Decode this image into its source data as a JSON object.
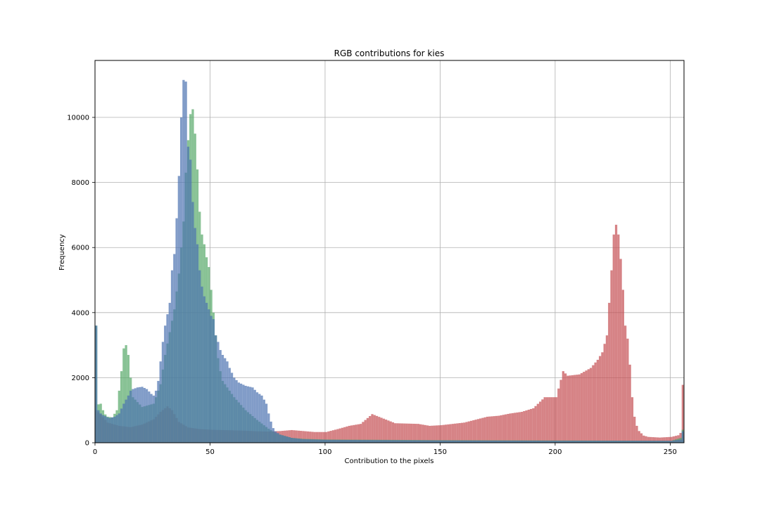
{
  "chart_data": {
    "type": "bar",
    "title": "RGB contributions for kies",
    "xlabel": "Contribution to the pixels",
    "ylabel": "Frequency",
    "xlim": [
      0,
      256
    ],
    "ylim": [
      0,
      11750
    ],
    "xticks": [
      0,
      50,
      100,
      150,
      200,
      250
    ],
    "yticks": [
      0,
      2000,
      4000,
      6000,
      8000,
      10000
    ],
    "grid": true,
    "overlay_alpha": 0.7,
    "bin_width": 1,
    "series": [
      {
        "color": "#c44e52",
        "points": [
          [
            0,
            1000
          ],
          [
            2,
            870
          ],
          [
            5,
            620
          ],
          [
            10,
            520
          ],
          [
            15,
            480
          ],
          [
            20,
            560
          ],
          [
            25,
            720
          ],
          [
            28,
            950
          ],
          [
            31,
            1120
          ],
          [
            33,
            1000
          ],
          [
            36,
            640
          ],
          [
            40,
            470
          ],
          [
            45,
            420
          ],
          [
            50,
            400
          ],
          [
            55,
            390
          ],
          [
            60,
            380
          ],
          [
            65,
            370
          ],
          [
            70,
            350
          ],
          [
            75,
            345
          ],
          [
            80,
            360
          ],
          [
            85,
            390
          ],
          [
            90,
            360
          ],
          [
            95,
            330
          ],
          [
            100,
            330
          ],
          [
            105,
            420
          ],
          [
            110,
            520
          ],
          [
            115,
            580
          ],
          [
            120,
            880
          ],
          [
            125,
            740
          ],
          [
            130,
            600
          ],
          [
            135,
            590
          ],
          [
            140,
            580
          ],
          [
            145,
            520
          ],
          [
            150,
            540
          ],
          [
            155,
            580
          ],
          [
            160,
            620
          ],
          [
            165,
            710
          ],
          [
            170,
            800
          ],
          [
            175,
            830
          ],
          [
            180,
            900
          ],
          [
            185,
            950
          ],
          [
            190,
            1060
          ],
          [
            195,
            1400
          ],
          [
            200,
            1400
          ],
          [
            203,
            2200
          ],
          [
            205,
            2060
          ],
          [
            210,
            2100
          ],
          [
            215,
            2300
          ],
          [
            218,
            2550
          ],
          [
            220,
            2780
          ],
          [
            222,
            3300
          ],
          [
            224,
            5300
          ],
          [
            225,
            6400
          ],
          [
            226,
            6700
          ],
          [
            227,
            6400
          ],
          [
            228,
            5650
          ],
          [
            229,
            4700
          ],
          [
            230,
            3600
          ],
          [
            231,
            3200
          ],
          [
            232,
            2400
          ],
          [
            233,
            1400
          ],
          [
            234,
            800
          ],
          [
            235,
            520
          ],
          [
            236,
            360
          ],
          [
            238,
            220
          ],
          [
            240,
            180
          ],
          [
            245,
            160
          ],
          [
            250,
            180
          ],
          [
            253,
            230
          ],
          [
            254,
            300
          ],
          [
            255,
            1780
          ]
        ]
      },
      {
        "color": "#55a868",
        "points": [
          [
            0,
            3600
          ],
          [
            1,
            1180
          ],
          [
            2,
            1200
          ],
          [
            3,
            1000
          ],
          [
            4,
            870
          ],
          [
            5,
            800
          ],
          [
            7,
            780
          ],
          [
            9,
            1000
          ],
          [
            10,
            1600
          ],
          [
            11,
            2200
          ],
          [
            12,
            2900
          ],
          [
            13,
            3000
          ],
          [
            14,
            2700
          ],
          [
            15,
            2000
          ],
          [
            16,
            1400
          ],
          [
            20,
            1100
          ],
          [
            25,
            1200
          ],
          [
            28,
            1800
          ],
          [
            30,
            2700
          ],
          [
            32,
            3400
          ],
          [
            34,
            4100
          ],
          [
            36,
            5200
          ],
          [
            38,
            6800
          ],
          [
            39,
            8300
          ],
          [
            40,
            9300
          ],
          [
            41,
            10100
          ],
          [
            42,
            10250
          ],
          [
            43,
            9500
          ],
          [
            44,
            8400
          ],
          [
            45,
            7100
          ],
          [
            46,
            6400
          ],
          [
            47,
            6100
          ],
          [
            48,
            5700
          ],
          [
            49,
            5400
          ],
          [
            50,
            4700
          ],
          [
            51,
            4000
          ],
          [
            52,
            3300
          ],
          [
            53,
            2600
          ],
          [
            54,
            2200
          ],
          [
            55,
            1900
          ],
          [
            60,
            1400
          ],
          [
            65,
            1000
          ],
          [
            70,
            700
          ],
          [
            75,
            430
          ],
          [
            78,
            300
          ],
          [
            80,
            250
          ],
          [
            85,
            150
          ],
          [
            90,
            120
          ],
          [
            100,
            100
          ],
          [
            150,
            80
          ],
          [
            200,
            70
          ],
          [
            250,
            60
          ],
          [
            254,
            150
          ],
          [
            255,
            400
          ]
        ]
      },
      {
        "color": "#4c72b0",
        "points": [
          [
            0,
            3600
          ],
          [
            1,
            1000
          ],
          [
            2,
            900
          ],
          [
            3,
            850
          ],
          [
            4,
            820
          ],
          [
            5,
            780
          ],
          [
            6,
            760
          ],
          [
            8,
            800
          ],
          [
            10,
            900
          ],
          [
            12,
            1200
          ],
          [
            14,
            1450
          ],
          [
            15,
            1600
          ],
          [
            16,
            1650
          ],
          [
            18,
            1700
          ],
          [
            20,
            1720
          ],
          [
            22,
            1650
          ],
          [
            24,
            1500
          ],
          [
            25,
            1450
          ],
          [
            26,
            1600
          ],
          [
            27,
            1900
          ],
          [
            28,
            2500
          ],
          [
            29,
            3100
          ],
          [
            30,
            3600
          ],
          [
            31,
            3950
          ],
          [
            32,
            4300
          ],
          [
            33,
            5300
          ],
          [
            34,
            5800
          ],
          [
            35,
            6900
          ],
          [
            36,
            8200
          ],
          [
            37,
            10000
          ],
          [
            38,
            11150
          ],
          [
            39,
            11100
          ],
          [
            40,
            9100
          ],
          [
            41,
            8700
          ],
          [
            42,
            7400
          ],
          [
            43,
            6600
          ],
          [
            44,
            6100
          ],
          [
            45,
            5300
          ],
          [
            46,
            4800
          ],
          [
            47,
            4500
          ],
          [
            48,
            4300
          ],
          [
            49,
            4100
          ],
          [
            50,
            3900
          ],
          [
            51,
            3800
          ],
          [
            52,
            3300
          ],
          [
            53,
            3100
          ],
          [
            54,
            2850
          ],
          [
            55,
            2700
          ],
          [
            56,
            2600
          ],
          [
            57,
            2500
          ],
          [
            58,
            2300
          ],
          [
            60,
            2000
          ],
          [
            62,
            1850
          ],
          [
            65,
            1750
          ],
          [
            68,
            1700
          ],
          [
            70,
            1550
          ],
          [
            72,
            1450
          ],
          [
            74,
            1200
          ],
          [
            75,
            900
          ],
          [
            76,
            650
          ],
          [
            77,
            450
          ],
          [
            78,
            350
          ],
          [
            80,
            250
          ],
          [
            85,
            150
          ],
          [
            90,
            110
          ],
          [
            100,
            90
          ],
          [
            150,
            70
          ],
          [
            200,
            60
          ],
          [
            250,
            60
          ],
          [
            254,
            100
          ],
          [
            255,
            350
          ]
        ]
      }
    ]
  }
}
